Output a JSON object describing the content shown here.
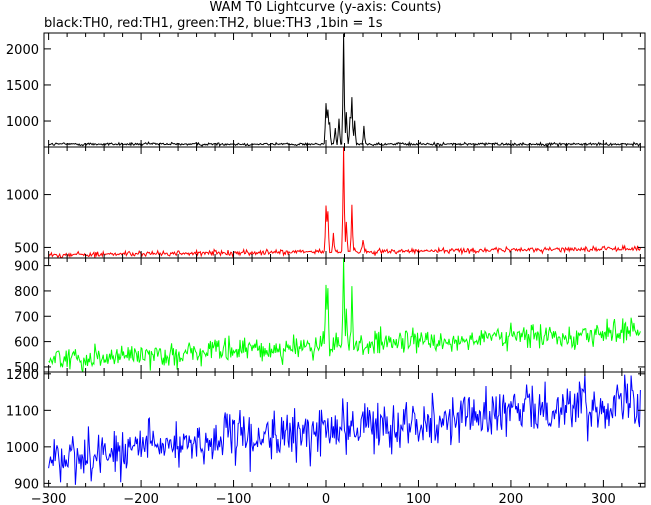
{
  "title": "WAM T0 Lightcurve (y-axis: Counts)",
  "subtitle": "black:TH0, red:TH1, green:TH2, blue:TH3 ,1bin = 1s",
  "chart_data": {
    "type": "line",
    "x_range": [
      -305,
      345
    ],
    "x_ticks": [
      -300,
      -200,
      -100,
      0,
      100,
      200,
      300
    ],
    "x_tick_labels": [
      "−300",
      "−200",
      "−100",
      "0",
      "100",
      "200",
      "300"
    ],
    "grid": false,
    "panels": [
      {
        "name": "TH0",
        "color": "#000000",
        "ylim": [
          640,
          2220
        ],
        "y_ticks": [
          1000,
          1500,
          2000
        ],
        "y_tick_labels": [
          "1000",
          "1500",
          "2000"
        ],
        "background_start": 680,
        "background_end": 680,
        "noise": 12,
        "peaks": [
          {
            "t": 0,
            "v": 1250
          },
          {
            "t": 2,
            "v": 1150
          },
          {
            "t": 4,
            "v": 980
          },
          {
            "t": 10,
            "v": 900
          },
          {
            "t": 14,
            "v": 1050
          },
          {
            "t": 19,
            "v": 2200
          },
          {
            "t": 22,
            "v": 1100
          },
          {
            "t": 26,
            "v": 1050
          },
          {
            "t": 28,
            "v": 1330
          },
          {
            "t": 31,
            "v": 1000
          },
          {
            "t": 41,
            "v": 930
          }
        ]
      },
      {
        "name": "TH1",
        "color": "#ff0000",
        "ylim": [
          400,
          1450
        ],
        "y_ticks": [
          500,
          1000
        ],
        "y_tick_labels": [
          "500",
          "1000"
        ],
        "background_start": 430,
        "background_end": 490,
        "noise": 14,
        "peaks": [
          {
            "t": 0,
            "v": 870
          },
          {
            "t": 2,
            "v": 800
          },
          {
            "t": 8,
            "v": 600
          },
          {
            "t": 19,
            "v": 1450
          },
          {
            "t": 22,
            "v": 700
          },
          {
            "t": 28,
            "v": 880
          },
          {
            "t": 40,
            "v": 540
          }
        ]
      },
      {
        "name": "TH2",
        "color": "#00ff00",
        "ylim": [
          480,
          930
        ],
        "y_ticks": [
          500,
          600,
          700,
          800,
          900
        ],
        "y_tick_labels": [
          "500",
          "600",
          "700",
          "800",
          "900"
        ],
        "background_start": 530,
        "background_end": 640,
        "noise": 28,
        "peaks": [
          {
            "t": 0,
            "v": 790
          },
          {
            "t": 2,
            "v": 740
          },
          {
            "t": 19,
            "v": 930
          },
          {
            "t": 22,
            "v": 700
          },
          {
            "t": 28,
            "v": 760
          }
        ]
      },
      {
        "name": "TH3",
        "color": "#0000ff",
        "ylim": [
          890,
          1205
        ],
        "y_ticks": [
          900,
          1000,
          1100,
          1200
        ],
        "y_tick_labels": [
          "900",
          "1000",
          "1100",
          "1200"
        ],
        "background_start": 970,
        "background_end": 1130,
        "noise": 40,
        "peaks": []
      }
    ]
  }
}
